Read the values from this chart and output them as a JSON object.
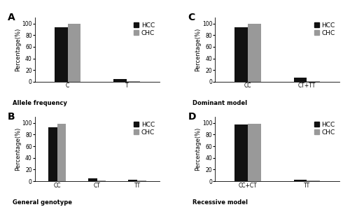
{
  "panels": [
    {
      "label": "A",
      "xlabel": "Allele frequency",
      "categories": [
        "C",
        "T"
      ],
      "hcc_values": [
        94,
        5
      ],
      "chc_values": [
        99,
        1
      ],
      "ylim": [
        0,
        110
      ],
      "yticks": [
        0,
        20,
        40,
        60,
        80,
        100
      ]
    },
    {
      "label": "B",
      "xlabel": "General genotype",
      "categories": [
        "CC",
        "CT",
        "TT"
      ],
      "hcc_values": [
        92,
        5,
        3
      ],
      "chc_values": [
        98,
        1,
        1
      ],
      "ylim": [
        0,
        110
      ],
      "yticks": [
        0,
        20,
        40,
        60,
        80,
        100
      ]
    },
    {
      "label": "C",
      "xlabel": "Dominant model",
      "categories": [
        "CC",
        "CT+TT"
      ],
      "hcc_values": [
        93,
        7
      ],
      "chc_values": [
        99,
        1
      ],
      "ylim": [
        0,
        110
      ],
      "yticks": [
        0,
        20,
        40,
        60,
        80,
        100
      ]
    },
    {
      "label": "D",
      "xlabel": "Recessive model",
      "categories": [
        "CC+CT",
        "TT"
      ],
      "hcc_values": [
        97,
        3
      ],
      "chc_values": [
        99,
        1
      ],
      "ylim": [
        0,
        110
      ],
      "yticks": [
        0,
        20,
        40,
        60,
        80,
        100
      ]
    }
  ],
  "hcc_color": "#111111",
  "chc_color": "#999999",
  "ylabel": "Percentage(%)",
  "bar_width": 0.22,
  "legend_labels": [
    "HCC",
    "CHC"
  ],
  "figsize": [
    5.0,
    3.16
  ],
  "dpi": 100,
  "background_color": "#ffffff",
  "xlabel_fontsize": 6.0,
  "ylabel_fontsize": 6.0,
  "tick_fontsize": 5.5,
  "label_fontsize": 10,
  "legend_fontsize": 6.5
}
